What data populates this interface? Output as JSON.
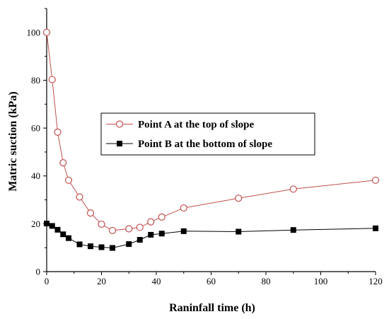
{
  "chart_data": {
    "type": "line",
    "xlabel": "Raninfall time (h)",
    "ylabel": "Matric suction (kPa)",
    "xlim": [
      0,
      120
    ],
    "ylim": [
      0,
      110
    ],
    "xticks": [
      0,
      20,
      40,
      60,
      80,
      100,
      120
    ],
    "yticks": [
      0,
      20,
      40,
      60,
      80,
      100
    ],
    "grid": false,
    "legend_position": "center",
    "series": [
      {
        "name": "Point A at the top of slope",
        "color": "#c0504d",
        "marker": "open-circle",
        "x": [
          0,
          2,
          4,
          6,
          8,
          12,
          16,
          20,
          24,
          30,
          34,
          38,
          42,
          50,
          70,
          90,
          120
        ],
        "y": [
          100,
          80.3,
          58.3,
          45.5,
          38.2,
          31.2,
          24.5,
          19.8,
          17.2,
          17.9,
          18.5,
          20.8,
          22.8,
          26.6,
          30.7,
          34.5,
          38.2
        ]
      },
      {
        "name": "Point B at the bottom of slope",
        "color": "#000000",
        "marker": "filled-square",
        "x": [
          0,
          2,
          4,
          6,
          8,
          12,
          16,
          20,
          24,
          30,
          34,
          38,
          42,
          50,
          70,
          90,
          120
        ],
        "y": [
          20.1,
          19.1,
          17.5,
          15.6,
          14,
          11.4,
          10.6,
          10.2,
          9.9,
          11.5,
          13.3,
          15.4,
          15.9,
          16.9,
          16.7,
          17.4,
          18.1
        ]
      }
    ]
  }
}
